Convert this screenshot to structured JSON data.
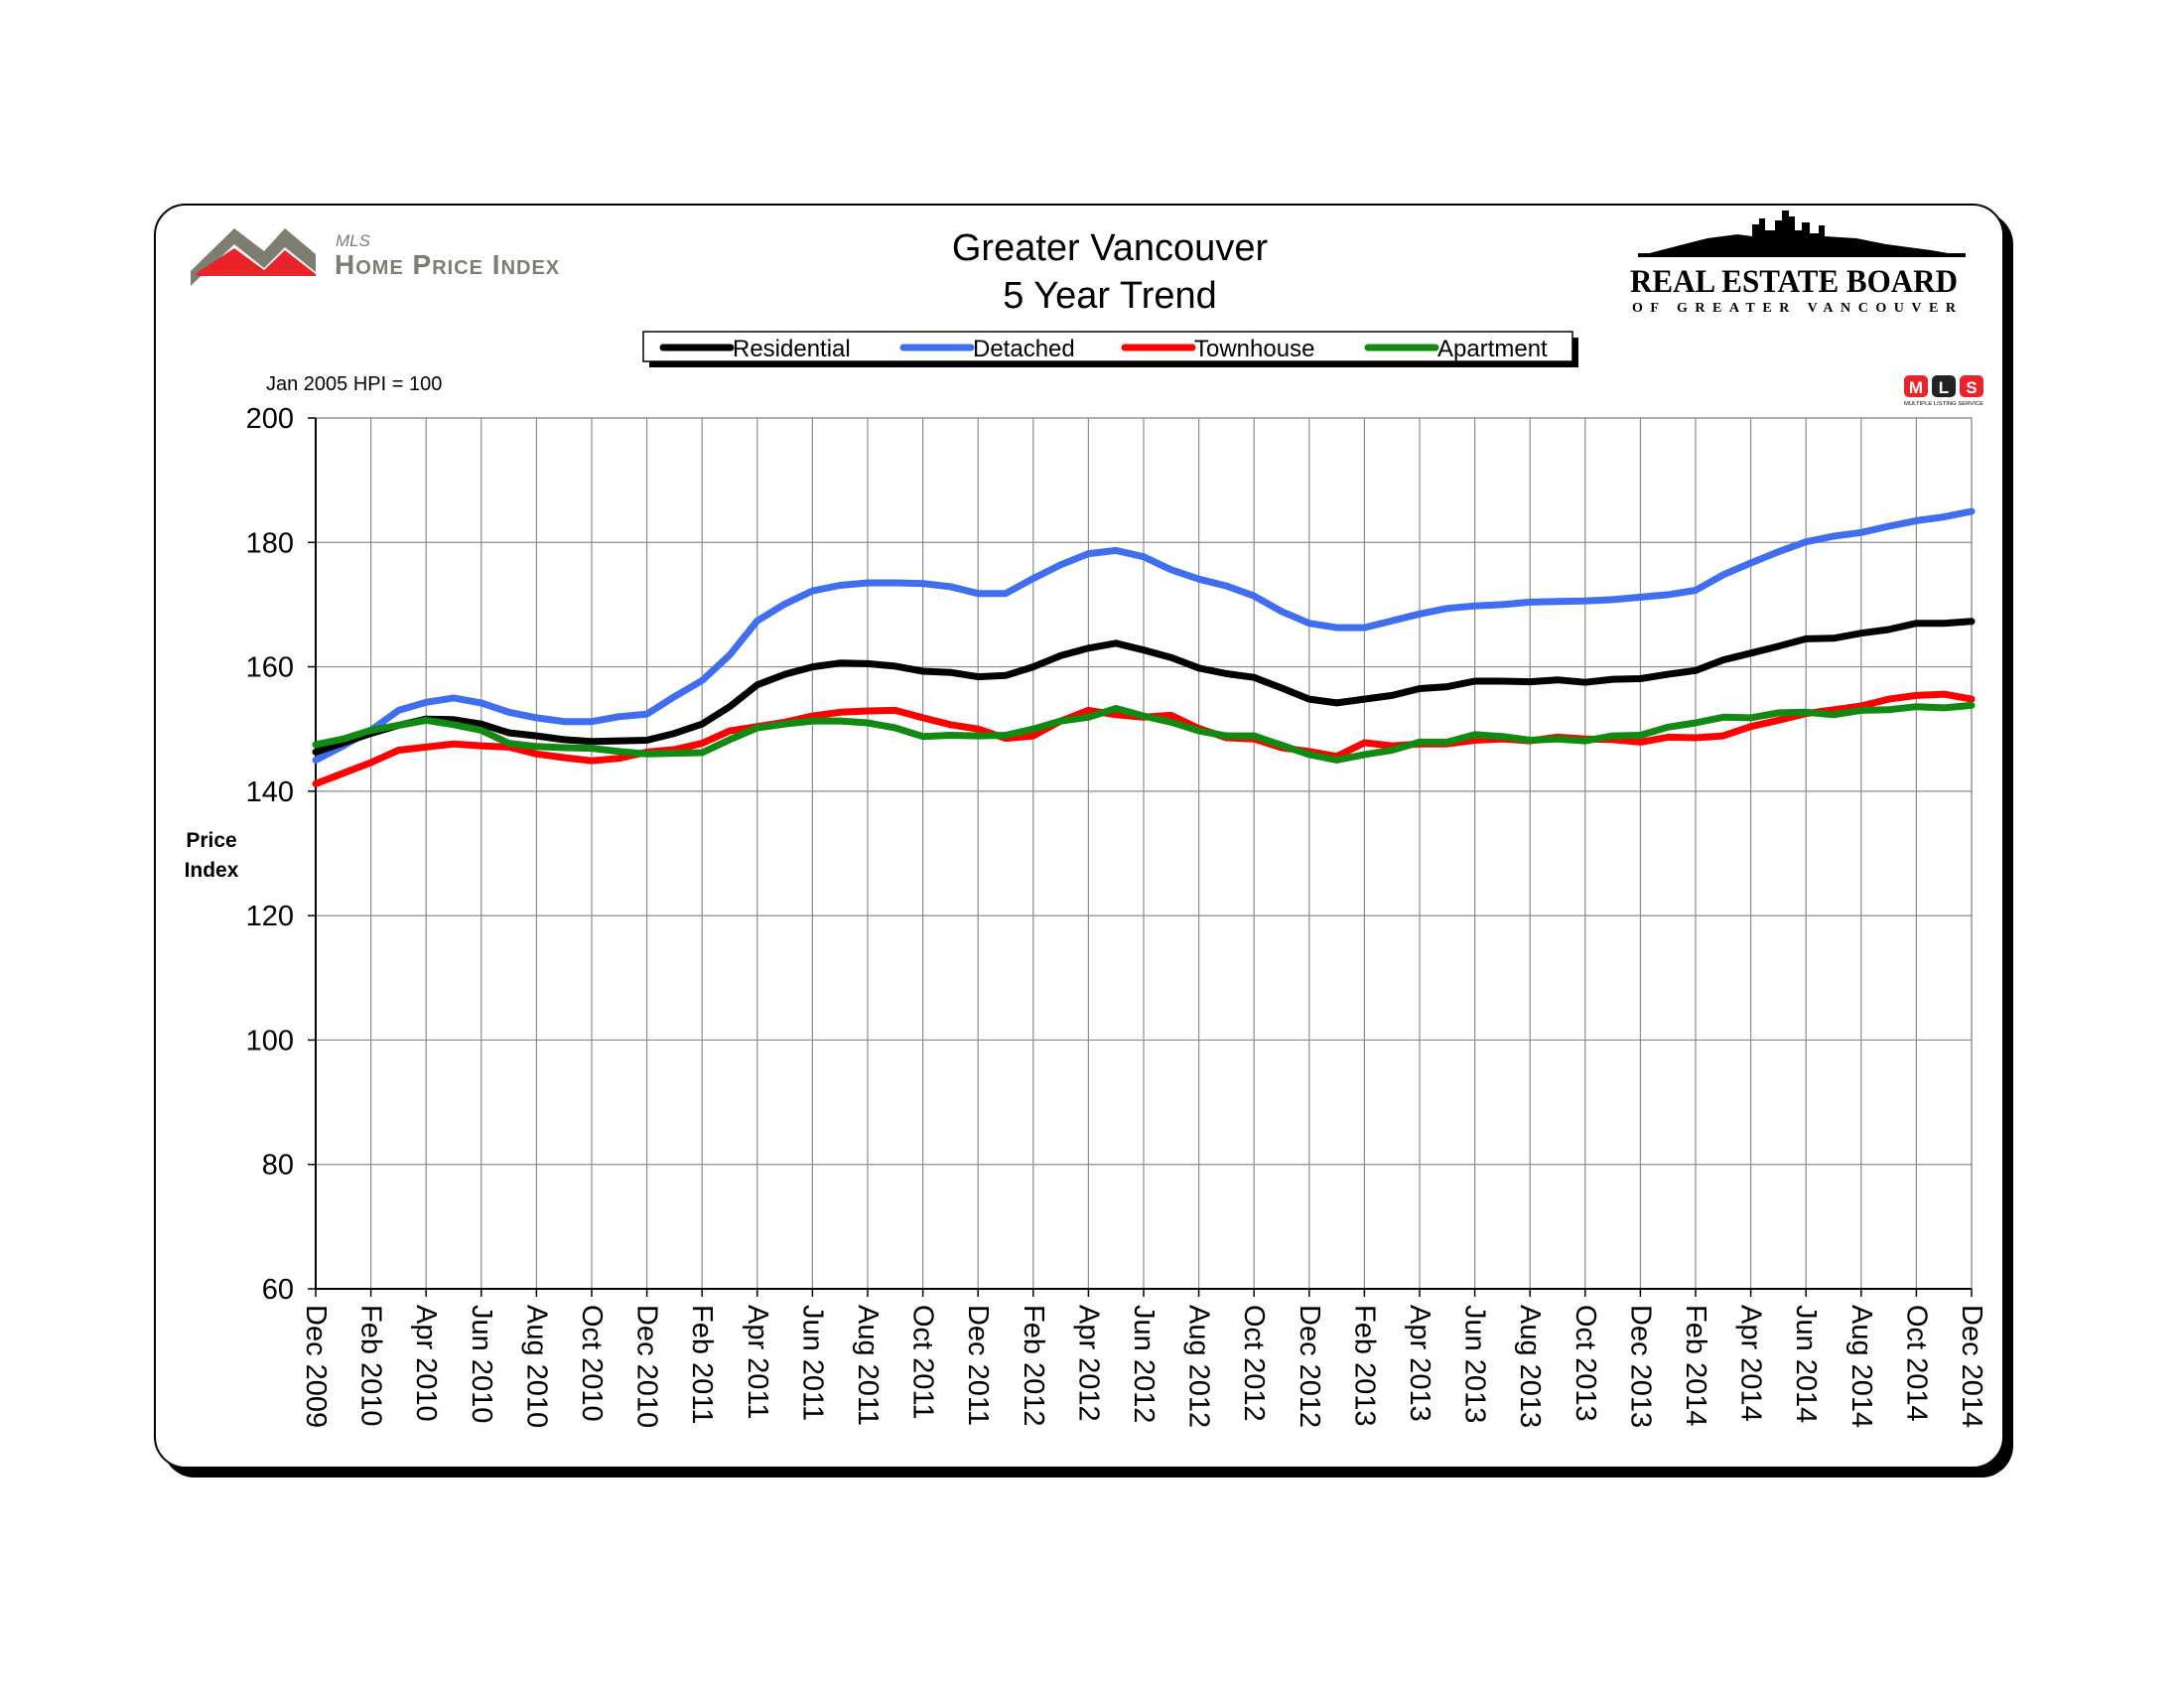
{
  "header": {
    "brand_small": "MLS",
    "brand_name": "Home Price Index",
    "board_name": "REAL ESTATE BOARD",
    "board_sub": "OF GREATER VANCOUVER",
    "mls_badge": [
      "M",
      "L",
      "S"
    ],
    "mls_badge_caption": "MULTIPLE LISTING SERVICE"
  },
  "colors": {
    "Residential": "#000000",
    "Detached": "#3f6ff0",
    "Townhouse": "#ff0000",
    "Apartment": "#118a11",
    "grid": "#8c8c8c",
    "logo_grey": "#7d7d72",
    "logo_red": "#e8232a"
  },
  "chart_data": {
    "type": "line",
    "title": "Greater Vancouver",
    "subtitle": "5 Year Trend",
    "note": "Jan 2005 HPI = 100",
    "ylabel": "Price Index",
    "xlabel": "",
    "ylim": [
      60,
      200
    ],
    "yticks": [
      60,
      80,
      100,
      120,
      140,
      160,
      180,
      200
    ],
    "grid": true,
    "legend_position": "top-center",
    "x": [
      "Dec 2009",
      "Jan 2010",
      "Feb 2010",
      "Mar 2010",
      "Apr 2010",
      "May 2010",
      "Jun 2010",
      "Jul 2010",
      "Aug 2010",
      "Sep 2010",
      "Oct 2010",
      "Nov 2010",
      "Dec 2010",
      "Jan 2011",
      "Feb 2011",
      "Mar 2011",
      "Apr 2011",
      "May 2011",
      "Jun 2011",
      "Jul 2011",
      "Aug 2011",
      "Sep 2011",
      "Oct 2011",
      "Nov 2011",
      "Dec 2011",
      "Jan 2012",
      "Feb 2012",
      "Mar 2012",
      "Apr 2012",
      "May 2012",
      "Jun 2012",
      "Jul 2012",
      "Aug 2012",
      "Sep 2012",
      "Oct 2012",
      "Nov 2012",
      "Dec 2012",
      "Jan 2013",
      "Feb 2013",
      "Mar 2013",
      "Apr 2013",
      "May 2013",
      "Jun 2013",
      "Jul 2013",
      "Aug 2013",
      "Sep 2013",
      "Oct 2013",
      "Nov 2013",
      "Dec 2013",
      "Jan 2014",
      "Feb 2014",
      "Mar 2014",
      "Apr 2014",
      "May 2014",
      "Jun 2014",
      "Jul 2014",
      "Aug 2014",
      "Sep 2014",
      "Oct 2014",
      "Nov 2014",
      "Dec 2014"
    ],
    "tick_labels": [
      "Dec 2009",
      "Feb 2010",
      "Apr 2010",
      "Jun 2010",
      "Aug 2010",
      "Oct 2010",
      "Dec 2010",
      "Feb 2011",
      "Apr 2011",
      "Jun 2011",
      "Aug 2011",
      "Oct 2011",
      "Dec 2011",
      "Feb 2012",
      "Apr 2012",
      "Jun 2012",
      "Aug 2012",
      "Oct 2012",
      "Dec 2012",
      "Feb 2013",
      "Apr 2013",
      "Jun 2013",
      "Aug 2013",
      "Oct 2013",
      "Dec 2013",
      "Feb 2014",
      "Apr 2014",
      "Jun 2014",
      "Aug 2014",
      "Oct 2014",
      "Dec 2014"
    ],
    "series": [
      {
        "name": "Residential",
        "values": [
          146.3,
          147.8,
          149.3,
          150.6,
          151.6,
          151.5,
          150.8,
          149.4,
          148.9,
          148.3,
          148.0,
          148.1,
          148.2,
          149.3,
          150.8,
          153.6,
          157.1,
          158.8,
          160.0,
          160.6,
          160.5,
          160.1,
          159.3,
          159.1,
          158.4,
          158.6,
          160.0,
          161.8,
          163.0,
          163.8,
          162.7,
          161.5,
          159.8,
          158.9,
          158.3,
          156.6,
          154.8,
          154.2,
          154.8,
          155.4,
          156.5,
          156.8,
          157.7,
          157.7,
          157.6,
          157.9,
          157.5,
          158.0,
          158.1,
          158.8,
          159.4,
          161.1,
          162.2,
          163.3,
          164.5,
          164.6,
          165.4,
          166.0,
          167.0,
          167.0,
          167.3
        ]
      },
      {
        "name": "Detached",
        "values": [
          145.0,
          147.3,
          149.8,
          153.0,
          154.3,
          155.0,
          154.2,
          152.7,
          151.8,
          151.2,
          151.2,
          152.0,
          152.4,
          155.2,
          157.8,
          161.9,
          167.4,
          170.1,
          172.2,
          173.1,
          173.5,
          173.5,
          173.4,
          172.9,
          171.8,
          171.8,
          174.2,
          176.4,
          178.2,
          178.7,
          177.7,
          175.6,
          174.1,
          173.0,
          171.4,
          168.9,
          167.0,
          166.3,
          166.3,
          167.4,
          168.5,
          169.4,
          169.8,
          170.0,
          170.4,
          170.5,
          170.6,
          170.8,
          171.2,
          171.6,
          172.3,
          174.8,
          176.7,
          178.5,
          180.1,
          181.0,
          181.6,
          182.6,
          183.5,
          184.1,
          185.0
        ]
      },
      {
        "name": "Townhouse",
        "values": [
          141.2,
          142.9,
          144.6,
          146.6,
          147.1,
          147.6,
          147.3,
          147.1,
          146.0,
          145.4,
          144.9,
          145.3,
          146.3,
          146.7,
          147.7,
          149.7,
          150.4,
          151.1,
          152.1,
          152.7,
          152.9,
          153.0,
          151.8,
          150.7,
          150.0,
          148.5,
          148.9,
          151.3,
          153.0,
          152.3,
          151.9,
          152.2,
          150.1,
          148.6,
          148.4,
          147.0,
          146.4,
          145.6,
          147.8,
          147.3,
          147.6,
          147.6,
          148.2,
          148.4,
          148.1,
          148.7,
          148.4,
          148.3,
          147.9,
          148.7,
          148.6,
          148.9,
          150.4,
          151.4,
          152.5,
          153.1,
          153.7,
          154.8,
          155.4,
          155.6,
          154.8
        ]
      },
      {
        "name": "Apartment",
        "values": [
          147.5,
          148.4,
          149.8,
          150.6,
          151.4,
          150.7,
          149.8,
          147.7,
          147.2,
          147.0,
          146.9,
          146.4,
          146.0,
          146.1,
          146.2,
          148.3,
          150.2,
          150.8,
          151.3,
          151.3,
          151.0,
          150.2,
          148.8,
          149.0,
          148.9,
          149.0,
          150.0,
          151.3,
          151.9,
          153.3,
          152.1,
          151.1,
          149.7,
          148.9,
          148.9,
          147.4,
          145.9,
          145.0,
          145.9,
          146.6,
          147.9,
          147.9,
          149.1,
          148.8,
          148.2,
          148.4,
          148.1,
          148.9,
          149.0,
          150.3,
          151.0,
          151.9,
          151.8,
          152.6,
          152.7,
          152.3,
          153.0,
          153.1,
          153.6,
          153.4,
          153.8
        ]
      }
    ]
  }
}
